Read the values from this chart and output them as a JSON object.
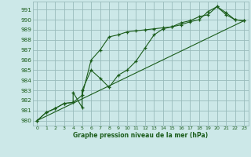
{
  "title": "Graphe pression niveau de la mer (hPa)",
  "bg_color": "#cce8e8",
  "grid_color": "#99bbbb",
  "line_color": "#1a5c1a",
  "xlim": [
    -0.5,
    23.5
  ],
  "ylim": [
    979.5,
    991.8
  ],
  "yticks": [
    980,
    981,
    982,
    983,
    984,
    985,
    986,
    987,
    988,
    989,
    990,
    991
  ],
  "xticks": [
    0,
    1,
    2,
    3,
    4,
    5,
    6,
    7,
    8,
    9,
    10,
    11,
    12,
    13,
    14,
    15,
    16,
    17,
    18,
    19,
    20,
    21,
    22,
    23
  ],
  "line1_x": [
    0,
    1,
    2,
    3,
    4,
    4,
    5,
    5,
    6,
    7,
    8,
    9,
    10,
    11,
    12,
    13,
    14,
    15,
    16,
    17,
    18,
    19,
    20,
    21,
    22,
    23
  ],
  "line1_y": [
    980.0,
    980.8,
    981.2,
    981.7,
    981.8,
    982.8,
    981.3,
    983.0,
    985.0,
    984.2,
    983.3,
    984.5,
    985.0,
    985.9,
    987.2,
    988.5,
    989.1,
    989.3,
    989.7,
    989.9,
    990.3,
    990.5,
    991.3,
    990.7,
    990.0,
    989.9
  ],
  "line2_x": [
    0,
    1,
    2,
    3,
    4,
    5,
    6,
    7,
    8,
    9,
    10,
    11,
    12,
    13,
    14,
    15,
    16,
    17,
    18,
    19,
    20,
    21,
    22,
    23
  ],
  "line2_y": [
    980.0,
    980.8,
    981.2,
    981.7,
    981.8,
    982.5,
    986.0,
    987.0,
    988.3,
    988.5,
    988.8,
    988.9,
    989.0,
    989.1,
    989.2,
    989.3,
    989.5,
    989.8,
    990.0,
    990.8,
    991.3,
    990.5,
    990.0,
    989.9
  ],
  "line3_x": [
    0,
    23
  ],
  "line3_y": [
    980.0,
    989.9
  ]
}
